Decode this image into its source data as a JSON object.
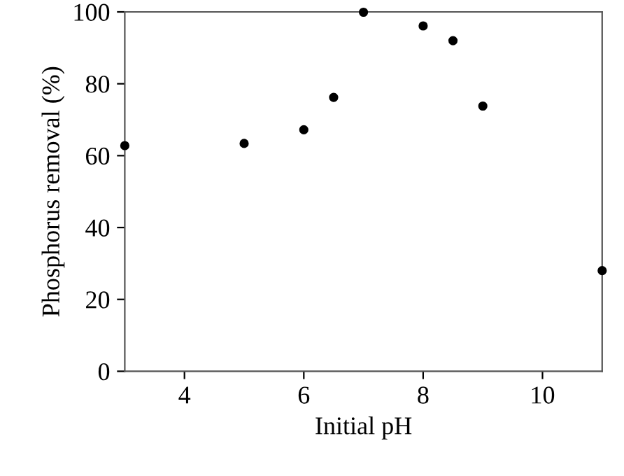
{
  "chart_data": {
    "type": "scatter",
    "xlabel": "Initial pH",
    "ylabel": "Phosphorus removal (%)",
    "x": [
      3,
      5,
      6,
      6.5,
      7,
      8,
      8.5,
      9,
      11
    ],
    "series": [
      {
        "color": "#000000",
        "values": [
          62.8,
          63.4,
          67.2,
          76.2,
          99.9,
          96.1,
          92.0,
          73.8,
          28.0
        ]
      }
    ],
    "xlim": [
      3,
      11
    ],
    "xticks": [
      4,
      6,
      8,
      10
    ],
    "ylim": [
      0,
      100
    ],
    "yticks": [
      0,
      20,
      40,
      60,
      80,
      100
    ],
    "grid": false,
    "marker": "circle",
    "legend": false
  }
}
